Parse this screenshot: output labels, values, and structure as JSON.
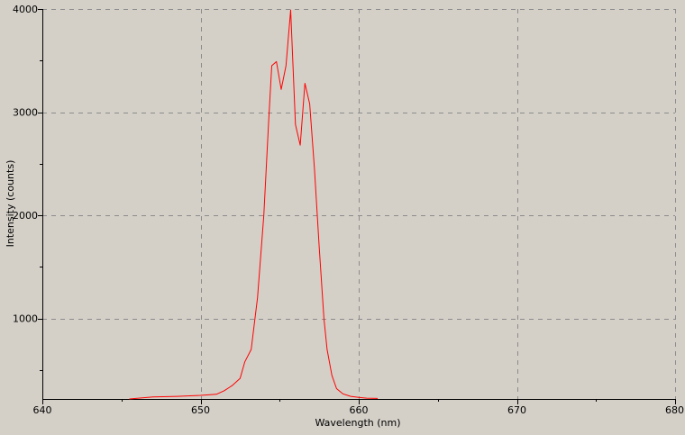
{
  "chart_data": {
    "type": "line",
    "title": "",
    "xlabel": "Wavelength (nm)",
    "ylabel": "Intensity (counts)",
    "xlim": [
      640,
      680
    ],
    "ylim": [
      220,
      4000
    ],
    "x_major_ticks": [
      640,
      650,
      660,
      670,
      680
    ],
    "x_minor_ticks": [
      645,
      655,
      665,
      675
    ],
    "y_major_ticks": [
      1000,
      2000,
      3000,
      4000
    ],
    "y_minor_ticks": [
      500,
      1500,
      2500,
      3500
    ],
    "x_tick_labels": [
      "640",
      "650",
      "660",
      "670",
      "680"
    ],
    "y_tick_labels": [
      "1000",
      "2000",
      "3000",
      "4000"
    ],
    "grid": true,
    "legend": "none",
    "series": [
      {
        "color": "#ff0000",
        "x": [
          645.5,
          647.0,
          648.5,
          650.0,
          651.0,
          651.5,
          652.0,
          652.5,
          652.8,
          653.2,
          653.6,
          654.0,
          654.3,
          654.5,
          654.8,
          655.1,
          655.4,
          655.7,
          656.0,
          656.3,
          656.6,
          656.9,
          657.2,
          657.5,
          657.8,
          658.0,
          658.3,
          658.6,
          659.0,
          659.5,
          660.0,
          660.5,
          661.2
        ],
        "y": [
          220,
          240,
          245,
          255,
          265,
          300,
          350,
          420,
          580,
          700,
          1200,
          2000,
          2900,
          3450,
          3490,
          3220,
          3450,
          3990,
          2880,
          2680,
          3280,
          3080,
          2450,
          1700,
          1000,
          700,
          450,
          320,
          270,
          245,
          235,
          228,
          225
        ]
      }
    ]
  }
}
